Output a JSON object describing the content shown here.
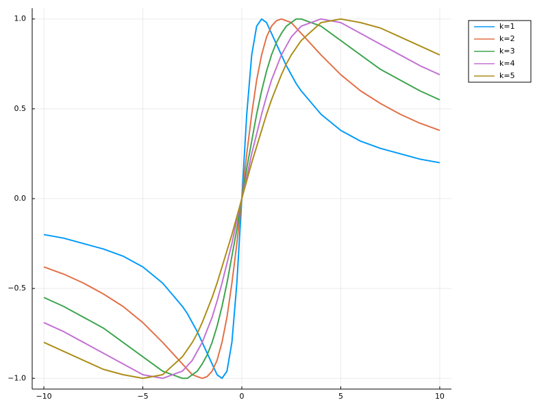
{
  "chart_data": {
    "type": "line",
    "x": [
      -10,
      -9,
      -8,
      -7,
      -6,
      -5,
      -4,
      -3,
      -2.75,
      -2.5,
      -2.25,
      -2,
      -1.75,
      -1.5,
      -1.25,
      -1,
      -0.75,
      -0.5,
      -0.25,
      0,
      0.25,
      0.5,
      0.75,
      1,
      1.25,
      1.5,
      1.75,
      2,
      2.25,
      2.5,
      2.75,
      3,
      4,
      5,
      6,
      7,
      8,
      9,
      10
    ],
    "series": [
      {
        "name": "k=1",
        "color": "#009af9",
        "values": [
          -0.2,
          -0.22,
          -0.25,
          -0.28,
          -0.32,
          -0.38,
          -0.47,
          -0.6,
          -0.64,
          -0.69,
          -0.74,
          -0.8,
          -0.86,
          -0.92,
          -0.98,
          -1,
          -0.96,
          -0.8,
          -0.47,
          0,
          0.47,
          0.8,
          0.96,
          1,
          0.98,
          0.92,
          0.86,
          0.8,
          0.74,
          0.69,
          0.64,
          0.6,
          0.47,
          0.38,
          0.32,
          0.28,
          0.25,
          0.22,
          0.2
        ]
      },
      {
        "name": "k=2",
        "color": "#e26f46",
        "values": [
          -0.38,
          -0.42,
          -0.47,
          -0.53,
          -0.6,
          -0.69,
          -0.8,
          -0.92,
          -0.95,
          -0.98,
          -0.99,
          -1,
          -0.99,
          -0.96,
          -0.9,
          -0.8,
          -0.66,
          -0.47,
          -0.25,
          0,
          0.25,
          0.47,
          0.66,
          0.8,
          0.9,
          0.96,
          0.99,
          1,
          0.99,
          0.98,
          0.95,
          0.92,
          0.8,
          0.69,
          0.6,
          0.53,
          0.47,
          0.42,
          0.38
        ]
      },
      {
        "name": "k=3",
        "color": "#3da44d",
        "values": [
          -0.55,
          -0.6,
          -0.66,
          -0.72,
          -0.8,
          -0.88,
          -0.96,
          -1,
          -1,
          -0.98,
          -0.96,
          -0.92,
          -0.87,
          -0.8,
          -0.71,
          -0.6,
          -0.47,
          -0.32,
          -0.17,
          0,
          0.17,
          0.32,
          0.47,
          0.6,
          0.71,
          0.8,
          0.87,
          0.92,
          0.96,
          0.98,
          1,
          1,
          0.96,
          0.88,
          0.8,
          0.72,
          0.66,
          0.6,
          0.55
        ]
      },
      {
        "name": "k=4",
        "color": "#c271d2",
        "values": [
          -0.69,
          -0.74,
          -0.8,
          -0.86,
          -0.92,
          -0.98,
          -1,
          -0.96,
          -0.93,
          -0.9,
          -0.85,
          -0.8,
          -0.73,
          -0.66,
          -0.57,
          -0.47,
          -0.36,
          -0.25,
          -0.12,
          0,
          0.12,
          0.25,
          0.36,
          0.47,
          0.57,
          0.66,
          0.73,
          0.8,
          0.85,
          0.9,
          0.93,
          0.96,
          1,
          0.98,
          0.92,
          0.86,
          0.8,
          0.74,
          0.69
        ]
      },
      {
        "name": "k=5",
        "color": "#ac8d18",
        "values": [
          -0.8,
          -0.85,
          -0.9,
          -0.95,
          -0.98,
          -1,
          -0.98,
          -0.88,
          -0.84,
          -0.8,
          -0.75,
          -0.69,
          -0.62,
          -0.55,
          -0.47,
          -0.38,
          -0.29,
          -0.2,
          -0.1,
          0,
          0.1,
          0.2,
          0.29,
          0.38,
          0.47,
          0.55,
          0.62,
          0.69,
          0.75,
          0.8,
          0.84,
          0.88,
          0.98,
          1,
          0.98,
          0.95,
          0.9,
          0.85,
          0.8
        ]
      }
    ],
    "xlim": [
      -10.59,
      10.59
    ],
    "ylim": [
      -1.06,
      1.06
    ],
    "xticks": [
      {
        "value": -10,
        "label": "−10"
      },
      {
        "value": -5,
        "label": "−5"
      },
      0,
      5,
      10
    ],
    "yticks": [
      {
        "value": -1,
        "label": "−1.0"
      },
      {
        "value": -0.5,
        "label": "−0.5"
      },
      {
        "value": 0,
        "label": "0.0"
      },
      {
        "value": 0.5,
        "label": "0.5"
      },
      {
        "value": 1,
        "label": "1.0"
      }
    ],
    "grid": true,
    "legend": "outer-top-right"
  }
}
